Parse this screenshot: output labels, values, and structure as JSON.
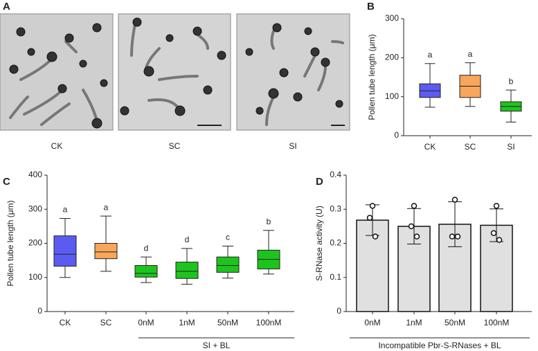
{
  "panel_a": {
    "panel_label": "A",
    "images": [
      "CK",
      "SC",
      "SI"
    ]
  },
  "chart_data": [
    {
      "type": "box",
      "panel_label": "B",
      "ylabel": "Pollen tube length (μm)",
      "categories": [
        "CK",
        "SC",
        "SI"
      ],
      "colors": [
        "#5b5bf2",
        "#f7a65c",
        "#1ec41e"
      ],
      "boxes": [
        {
          "min": 73,
          "q1": 98,
          "median": 115,
          "q3": 133,
          "max": 185
        },
        {
          "min": 75,
          "q1": 98,
          "median": 127,
          "q3": 155,
          "max": 187
        },
        {
          "min": 35,
          "q1": 63,
          "median": 75,
          "q3": 87,
          "max": 117
        }
      ],
      "letters": [
        "a",
        "a",
        "b"
      ],
      "ylim": [
        0,
        300
      ],
      "yticks": [
        0,
        100,
        200,
        300
      ]
    },
    {
      "type": "box",
      "panel_label": "C",
      "ylabel": "Pollen tube length (μm)",
      "categories": [
        "CK",
        "SC",
        "0nM",
        "1nM",
        "50nM",
        "100nM"
      ],
      "colors": [
        "#5b5bf2",
        "#f7a65c",
        "#1ec41e",
        "#1ec41e",
        "#1ec41e",
        "#1ec41e"
      ],
      "boxes": [
        {
          "min": 100,
          "q1": 133,
          "median": 168,
          "q3": 222,
          "max": 273
        },
        {
          "min": 118,
          "q1": 155,
          "median": 175,
          "q3": 200,
          "max": 280
        },
        {
          "min": 85,
          "q1": 101,
          "median": 112,
          "q3": 135,
          "max": 160
        },
        {
          "min": 80,
          "q1": 97,
          "median": 118,
          "q3": 145,
          "max": 185
        },
        {
          "min": 98,
          "q1": 115,
          "median": 135,
          "q3": 160,
          "max": 192
        },
        {
          "min": 110,
          "q1": 125,
          "median": 153,
          "q3": 180,
          "max": 238
        }
      ],
      "letters": [
        "a",
        "a",
        "d",
        "d",
        "c",
        "b"
      ],
      "group_label": "SI + BL",
      "ylim": [
        0,
        400
      ],
      "yticks": [
        0,
        100,
        200,
        300,
        400
      ]
    },
    {
      "type": "bar",
      "panel_label": "D",
      "ylabel": "S-RNase activity (U)",
      "categories": [
        "0nM",
        "1nM",
        "50nM",
        "100nM"
      ],
      "color": "#e0e0e0",
      "values": [
        0.268,
        0.25,
        0.256,
        0.253
      ],
      "errors": [
        0.045,
        0.052,
        0.066,
        0.048
      ],
      "points": [
        [
          0.31,
          0.275,
          0.22
        ],
        [
          0.31,
          0.25,
          0.22
        ],
        [
          0.328,
          0.22,
          0.22
        ],
        [
          0.31,
          0.23,
          0.21
        ]
      ],
      "group_label": "Incompatible Pbr-S-RNases + BL",
      "ylim": [
        0,
        0.4
      ],
      "yticks": [
        0,
        0.1,
        0.2,
        0.3,
        0.4
      ]
    }
  ]
}
